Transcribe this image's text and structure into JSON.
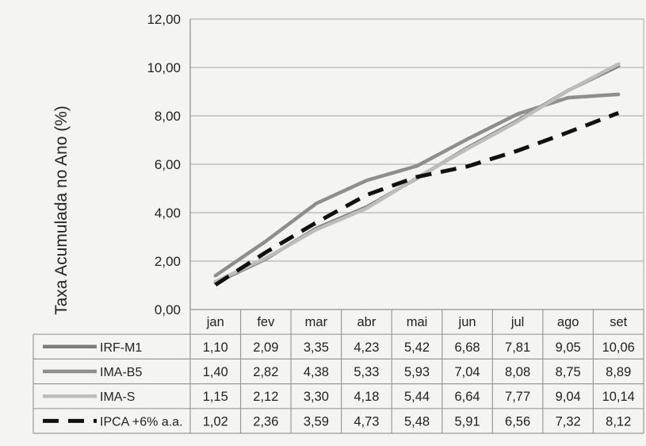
{
  "chart_data": {
    "type": "line",
    "ylabel": "Taxa Acumulada no Ano (%)",
    "ylim": [
      0,
      12
    ],
    "yticks": [
      "0,00",
      "2,00",
      "4,00",
      "6,00",
      "8,00",
      "10,00",
      "12,00"
    ],
    "grid": true,
    "legend": "data-table",
    "categories": [
      "jan",
      "fev",
      "mar",
      "abr",
      "mai",
      "jun",
      "jul",
      "ago",
      "set"
    ],
    "series": [
      {
        "name": "IRF-M1",
        "color": "#7d7d7d",
        "style": "solid",
        "values": [
          1.1,
          2.09,
          3.35,
          4.23,
          5.42,
          6.68,
          7.81,
          9.05,
          10.06
        ],
        "labels": [
          "1,10",
          "2,09",
          "3,35",
          "4,23",
          "5,42",
          "6,68",
          "7,81",
          "9,05",
          "10,06"
        ]
      },
      {
        "name": "IMA-B5",
        "color": "#8e8e8e",
        "style": "solid",
        "values": [
          1.4,
          2.82,
          4.38,
          5.33,
          5.93,
          7.04,
          8.08,
          8.75,
          8.89
        ],
        "labels": [
          "1,40",
          "2,82",
          "4,38",
          "5,33",
          "5,93",
          "7,04",
          "8,08",
          "8,75",
          "8,89"
        ]
      },
      {
        "name": "IMA-S",
        "color": "#bdbdbd",
        "style": "solid",
        "values": [
          1.15,
          2.12,
          3.3,
          4.18,
          5.44,
          6.64,
          7.77,
          9.04,
          10.14
        ],
        "labels": [
          "1,15",
          "2,12",
          "3,30",
          "4,18",
          "5,44",
          "6,64",
          "7,77",
          "9,04",
          "10,14"
        ]
      },
      {
        "name": "IPCA +6% a.a.",
        "color": "#111111",
        "style": "dashed",
        "values": [
          1.02,
          2.36,
          3.59,
          4.73,
          5.48,
          5.91,
          6.56,
          7.32,
          8.12
        ],
        "labels": [
          "1,02",
          "2,36",
          "3,59",
          "4,73",
          "5,48",
          "5,91",
          "6,56",
          "7,32",
          "8,12"
        ]
      }
    ]
  }
}
